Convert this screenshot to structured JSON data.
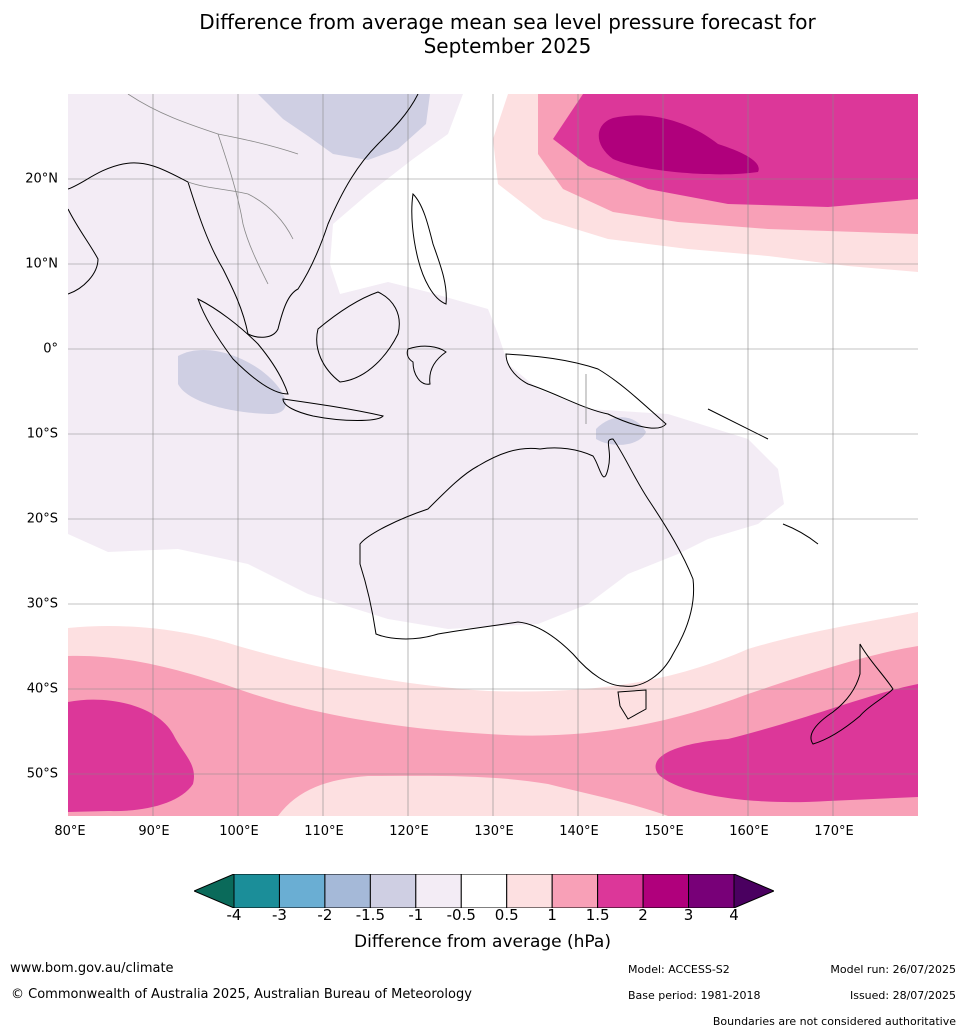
{
  "title_line1": "Difference from average mean sea level pressure forecast for",
  "title_line2": "September 2025",
  "lat_labels": [
    "20°N",
    "10°N",
    "0°",
    "10°S",
    "20°S",
    "30°S",
    "40°S",
    "50°S"
  ],
  "lon_labels": [
    "80°E",
    "90°E",
    "100°E",
    "110°E",
    "120°E",
    "130°E",
    "140°E",
    "150°E",
    "160°E",
    "170°E"
  ],
  "colorbar": {
    "ticks": [
      "-4",
      "-3",
      "-2",
      "-1.5",
      "-1",
      "-0.5",
      "0.5",
      "1",
      "1.5",
      "2",
      "3",
      "4"
    ],
    "colors": [
      "#1b8e99",
      "#6aaed3",
      "#a5b9d8",
      "#cfcfe3",
      "#f3ecf5",
      "#ffffff",
      "#fde0e1",
      "#f8a0b7",
      "#dc3799",
      "#b0007c",
      "#780078"
    ],
    "under_color": "#0a6a5a",
    "over_color": "#4a0060",
    "label": "Difference from average (hPa)"
  },
  "footer": {
    "website": "www.bom.gov.au/climate",
    "copyright": "© Commonwealth of Australia 2025, Australian Bureau of Meteorology",
    "model": "Model: ACCESS-S2",
    "base_period": "Base period: 1981-2018",
    "model_run": "Model run: 26/07/2025",
    "issued": "Issued: 28/07/2025",
    "boundaries_note": "Boundaries are not considered authoritative"
  }
}
